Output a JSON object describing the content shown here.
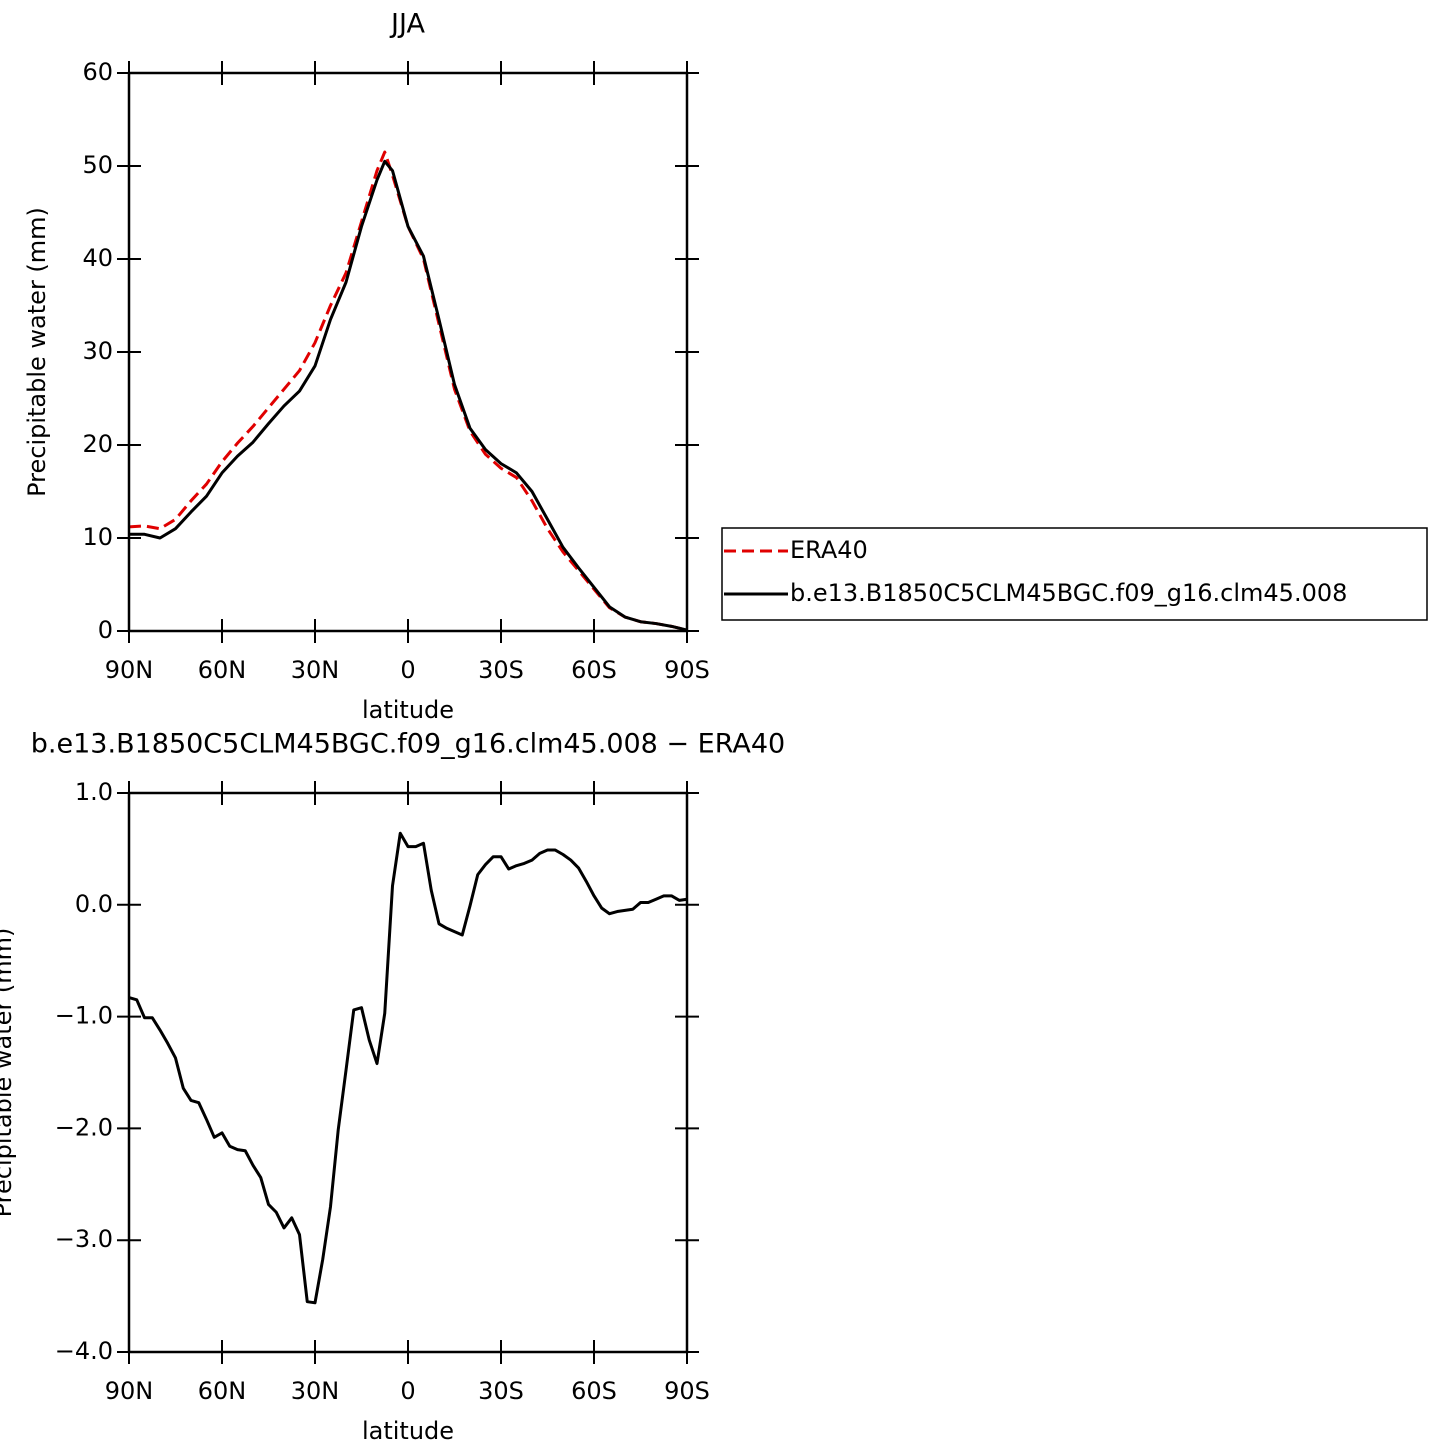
{
  "chart_data": [
    {
      "type": "line",
      "title": "JJA",
      "xlabel": "latitude",
      "ylabel": "Precipitable water (mm)",
      "x": [
        90,
        85,
        80,
        75,
        70,
        65,
        60,
        55,
        50,
        45,
        40,
        35,
        30,
        25,
        20,
        15,
        10,
        7.5,
        5,
        0,
        -5,
        -10,
        -15,
        -20,
        -25,
        -30,
        -35,
        -40,
        -45,
        -50,
        -55,
        -60,
        -65,
        -70,
        -75,
        -80,
        -85,
        -90
      ],
      "xlim": [
        90,
        -90
      ],
      "xticks": [
        {
          "value": 90,
          "label": "90N"
        },
        {
          "value": 60,
          "label": "60N"
        },
        {
          "value": 30,
          "label": "30N"
        },
        0,
        {
          "value": -30,
          "label": "30S"
        },
        {
          "value": -60,
          "label": "60S"
        },
        {
          "value": -90,
          "label": "90S"
        }
      ],
      "ylim": [
        0,
        60
      ],
      "yticks": [
        0,
        10,
        20,
        30,
        40,
        50,
        60
      ],
      "legend": "right",
      "series": [
        {
          "name": "ERA40",
          "color": "#e00000",
          "linestyle": "dashed",
          "values": [
            11.2,
            11.3,
            11.0,
            12.0,
            14.0,
            15.8,
            18.2,
            20.2,
            22.0,
            24.0,
            26.0,
            28.0,
            31.0,
            35.0,
            38.5,
            44.0,
            49.5,
            51.5,
            49.0,
            43.5,
            40.0,
            33.0,
            26.0,
            21.5,
            19.0,
            17.5,
            16.5,
            14.0,
            11.0,
            8.5,
            6.5,
            4.5,
            2.5,
            1.5,
            1.0,
            0.8,
            0.5,
            0.1
          ]
        },
        {
          "name": "b.e13.B1850C5CLM45BGC.f09_g16.clm45.008",
          "color": "#000000",
          "linestyle": "solid",
          "values": [
            10.4,
            10.4,
            10.0,
            11.0,
            12.8,
            14.5,
            17.0,
            18.8,
            20.3,
            22.3,
            24.2,
            25.8,
            28.5,
            33.5,
            37.5,
            43.5,
            48.5,
            50.5,
            49.5,
            43.5,
            40.3,
            33.5,
            26.5,
            21.8,
            19.5,
            18.0,
            17.0,
            15.0,
            12.0,
            9.0,
            6.8,
            4.7,
            2.6,
            1.5,
            1.0,
            0.8,
            0.5,
            0.1
          ]
        }
      ]
    },
    {
      "type": "line",
      "title": "b.e13.B1850C5CLM45BGC.f09_g16.clm45.008 − ERA40",
      "xlabel": "latitude",
      "ylabel": "Precipitable water (mm)",
      "x": [
        90,
        87.5,
        85,
        82.5,
        80,
        77.5,
        75,
        72.5,
        70,
        67.5,
        65,
        62.5,
        60,
        57.5,
        55,
        52.5,
        50,
        47.5,
        45,
        42.5,
        40,
        37.5,
        35,
        32.5,
        30,
        27.5,
        25,
        22.5,
        20,
        17.5,
        15,
        12.5,
        10,
        7.5,
        5,
        2.5,
        0,
        -2.5,
        -5,
        -7.5,
        -10,
        -12.5,
        -15,
        -17.5,
        -20,
        -22.5,
        -25,
        -27.5,
        -30,
        -32.5,
        -35,
        -37.5,
        -40,
        -42.5,
        -45,
        -47.5,
        -50,
        -52.5,
        -55,
        -57.5,
        -60,
        -62.5,
        -65,
        -67.5,
        -70,
        -72.5,
        -75,
        -77.5,
        -80,
        -82.5,
        -85,
        -87.5,
        -90
      ],
      "xlim": [
        90,
        -90
      ],
      "xticks": [
        {
          "value": 90,
          "label": "90N"
        },
        {
          "value": 60,
          "label": "60N"
        },
        {
          "value": 30,
          "label": "30N"
        },
        0,
        {
          "value": -30,
          "label": "30S"
        },
        {
          "value": -60,
          "label": "60S"
        },
        {
          "value": -90,
          "label": "90S"
        }
      ],
      "ylim": [
        -4,
        1
      ],
      "yticks": [
        {
          "value": -4,
          "label": "−4.0"
        },
        {
          "value": -3,
          "label": "−3.0"
        },
        {
          "value": -2,
          "label": "−2.0"
        },
        {
          "value": -1,
          "label": "−1.0"
        },
        {
          "value": 0,
          "label": "0.0"
        },
        {
          "value": 1,
          "label": "1.0"
        }
      ],
      "series": [
        {
          "color": "#000000",
          "linestyle": "solid",
          "values": [
            -0.83,
            -0.85,
            -1.01,
            -1.01,
            -1.12,
            -1.24,
            -1.37,
            -1.64,
            -1.75,
            -1.77,
            -1.92,
            -2.08,
            -2.04,
            -2.16,
            -2.19,
            -2.2,
            -2.33,
            -2.44,
            -2.68,
            -2.75,
            -2.89,
            -2.8,
            -2.95,
            -3.55,
            -3.56,
            -3.17,
            -2.7,
            -2.01,
            -1.48,
            -0.94,
            -0.92,
            -1.21,
            -1.42,
            -0.97,
            0.17,
            0.64,
            0.52,
            0.52,
            0.55,
            0.13,
            -0.17,
            -0.21,
            -0.24,
            -0.27,
            -0.01,
            0.27,
            0.36,
            0.43,
            0.43,
            0.32,
            0.35,
            0.37,
            0.4,
            0.46,
            0.49,
            0.49,
            0.45,
            0.4,
            0.33,
            0.21,
            0.08,
            -0.03,
            -0.08,
            -0.06,
            -0.05,
            -0.04,
            0.02,
            0.02,
            0.05,
            0.08,
            0.08,
            0.04,
            0.05
          ]
        }
      ]
    }
  ]
}
